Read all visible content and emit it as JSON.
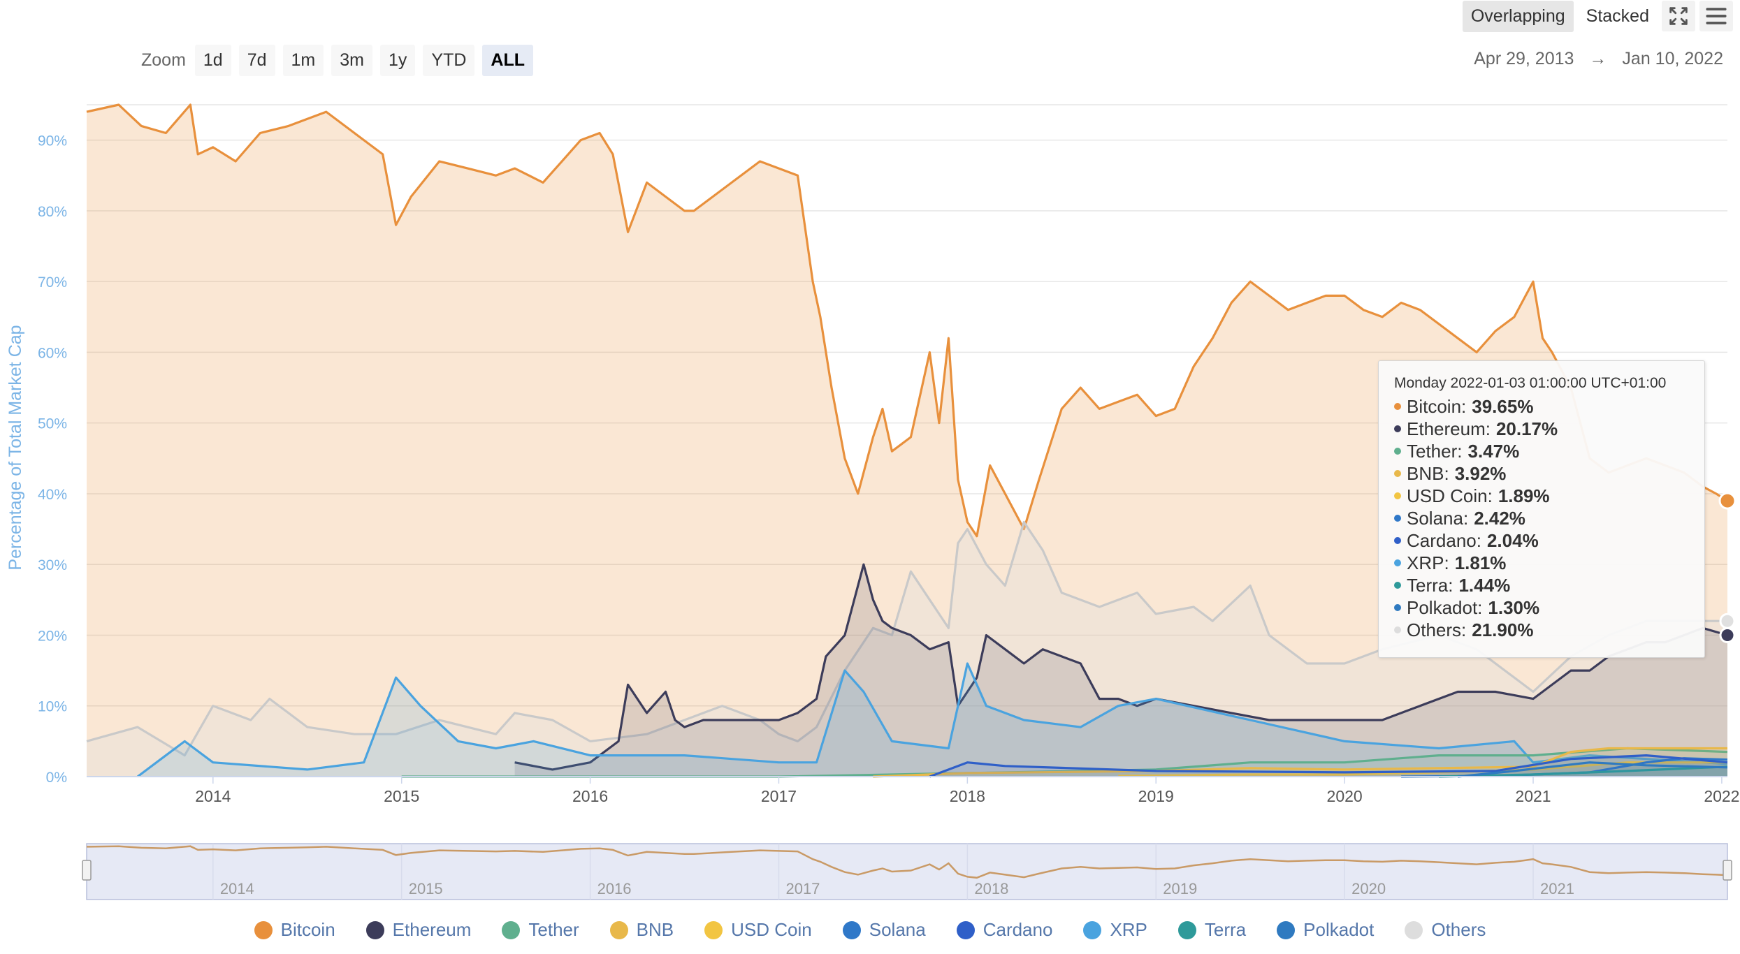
{
  "toolbar": {
    "modes": [
      "Overlapping",
      "Stacked"
    ],
    "active_mode": "Overlapping",
    "zoom_label": "Zoom",
    "zoom_options": [
      "1d",
      "7d",
      "1m",
      "3m",
      "1y",
      "YTD",
      "ALL"
    ],
    "active_zoom": "ALL",
    "range_from": "Apr 29, 2013",
    "range_arrow": "→",
    "range_to": "Jan 10, 2022",
    "fullscreen_icon": "fullscreen-icon",
    "menu_icon": "hamburger-menu-icon"
  },
  "tooltip": {
    "date": "Monday 2022-01-03 01:00:00 UTC+01:00",
    "rows": [
      {
        "name": "Bitcoin",
        "value": "39.65%",
        "color": "#E8903C"
      },
      {
        "name": "Ethereum",
        "value": "20.17%",
        "color": "#3C3C5A"
      },
      {
        "name": "Tether",
        "value": "3.47%",
        "color": "#5FAF8E"
      },
      {
        "name": "BNB",
        "value": "3.92%",
        "color": "#E8B84A"
      },
      {
        "name": "USD Coin",
        "value": "1.89%",
        "color": "#F2C542"
      },
      {
        "name": "Solana",
        "value": "2.42%",
        "color": "#2F78C8"
      },
      {
        "name": "Cardano",
        "value": "2.04%",
        "color": "#2F5FC8"
      },
      {
        "name": "XRP",
        "value": "1.81%",
        "color": "#4AA3DF"
      },
      {
        "name": "Terra",
        "value": "1.44%",
        "color": "#2E9A9A"
      },
      {
        "name": "Polkadot",
        "value": "1.30%",
        "color": "#2F7AC0"
      },
      {
        "name": "Others",
        "value": "21.90%",
        "color": "#DDDDDD"
      }
    ]
  },
  "chart_data": {
    "type": "area",
    "ylabel": "Percentage of Total Market Cap",
    "ylim": [
      0,
      95
    ],
    "y_ticks": [
      "0%",
      "10%",
      "20%",
      "30%",
      "40%",
      "50%",
      "60%",
      "70%",
      "80%",
      "90%"
    ],
    "x_ticks": [
      "2014",
      "2015",
      "2016",
      "2017",
      "2018",
      "2019",
      "2020",
      "2021",
      "2022"
    ],
    "navigator_ticks": [
      "2014",
      "2015",
      "2016",
      "2017",
      "2018",
      "2019",
      "2020",
      "2021"
    ],
    "xlim": [
      2013.33,
      2022.03
    ],
    "grid": true,
    "legend_position": "bottom",
    "series": [
      {
        "name": "Bitcoin",
        "color": "#E8903C",
        "x": [
          2013.33,
          2013.5,
          2013.62,
          2013.75,
          2013.88,
          2013.92,
          2014.0,
          2014.12,
          2014.25,
          2014.4,
          2014.5,
          2014.6,
          2014.75,
          2014.9,
          2014.97,
          2015.05,
          2015.2,
          2015.35,
          2015.5,
          2015.6,
          2015.75,
          2015.85,
          2015.95,
          2016.05,
          2016.12,
          2016.2,
          2016.3,
          2016.4,
          2016.5,
          2016.55,
          2016.65,
          2016.75,
          2016.9,
          2017.0,
          2017.1,
          2017.18,
          2017.22,
          2017.28,
          2017.35,
          2017.42,
          2017.5,
          2017.55,
          2017.6,
          2017.7,
          2017.8,
          2017.85,
          2017.9,
          2017.95,
          2018.0,
          2018.05,
          2018.12,
          2018.2,
          2018.3,
          2018.38,
          2018.5,
          2018.6,
          2018.7,
          2018.8,
          2018.9,
          2019.0,
          2019.1,
          2019.2,
          2019.3,
          2019.4,
          2019.5,
          2019.6,
          2019.7,
          2019.8,
          2019.9,
          2020.0,
          2020.1,
          2020.2,
          2020.3,
          2020.4,
          2020.5,
          2020.6,
          2020.7,
          2020.8,
          2020.9,
          2020.96,
          2021.0,
          2021.05,
          2021.1,
          2021.2,
          2021.3,
          2021.4,
          2021.5,
          2021.6,
          2021.7,
          2021.8,
          2021.9,
          2021.97,
          2022.03
        ],
        "values": [
          94,
          95,
          92,
          91,
          95,
          88,
          89,
          87,
          91,
          92,
          93,
          94,
          91,
          88,
          78,
          82,
          87,
          86,
          85,
          86,
          84,
          87,
          90,
          91,
          88,
          77,
          84,
          82,
          80,
          80,
          82,
          84,
          87,
          86,
          85,
          70,
          65,
          55,
          45,
          40,
          48,
          52,
          46,
          48,
          60,
          50,
          62,
          42,
          36,
          34,
          44,
          40,
          35,
          42,
          52,
          55,
          52,
          53,
          54,
          51,
          52,
          58,
          62,
          67,
          70,
          68,
          66,
          67,
          68,
          68,
          66,
          65,
          67,
          66,
          64,
          62,
          60,
          63,
          65,
          68,
          70,
          62,
          60,
          55,
          45,
          43,
          44,
          45,
          44,
          43,
          41,
          40,
          39
        ]
      },
      {
        "name": "Ethereum",
        "color": "#3C3C5A",
        "x": [
          2015.6,
          2015.8,
          2016.0,
          2016.15,
          2016.2,
          2016.3,
          2016.4,
          2016.45,
          2016.5,
          2016.6,
          2016.8,
          2017.0,
          2017.1,
          2017.2,
          2017.25,
          2017.35,
          2017.45,
          2017.5,
          2017.55,
          2017.6,
          2017.7,
          2017.8,
          2017.9,
          2017.95,
          2018.0,
          2018.05,
          2018.1,
          2018.2,
          2018.3,
          2018.4,
          2018.5,
          2018.6,
          2018.7,
          2018.8,
          2018.9,
          2019.0,
          2019.2,
          2019.4,
          2019.6,
          2019.8,
          2020.0,
          2020.2,
          2020.4,
          2020.6,
          2020.8,
          2021.0,
          2021.1,
          2021.2,
          2021.3,
          2021.4,
          2021.5,
          2021.6,
          2021.7,
          2021.8,
          2021.9,
          2022.03
        ],
        "values": [
          2,
          1,
          2,
          5,
          13,
          9,
          12,
          8,
          7,
          8,
          8,
          8,
          9,
          11,
          17,
          20,
          30,
          25,
          22,
          21,
          20,
          18,
          19,
          10,
          12,
          14,
          20,
          18,
          16,
          18,
          17,
          16,
          11,
          11,
          10,
          11,
          10,
          9,
          8,
          8,
          8,
          8,
          10,
          12,
          12,
          11,
          13,
          15,
          15,
          17,
          18,
          19,
          19,
          20,
          21,
          20
        ]
      },
      {
        "name": "Tether",
        "color": "#5FAF8E",
        "x": [
          2015.0,
          2017.0,
          2018.0,
          2019.0,
          2019.5,
          2020.0,
          2020.5,
          2021.0,
          2021.5,
          2022.03
        ],
        "values": [
          0,
          0,
          0.5,
          1,
          2,
          2,
          3,
          3,
          4,
          3.5
        ]
      },
      {
        "name": "BNB",
        "color": "#E8B84A",
        "x": [
          2017.5,
          2018.0,
          2019.0,
          2019.5,
          2020.0,
          2020.5,
          2021.0,
          2021.2,
          2021.4,
          2021.7,
          2022.03
        ],
        "values": [
          0,
          0.5,
          0.8,
          1.2,
          1.0,
          1.2,
          1.4,
          3.5,
          4.0,
          4.0,
          4.0
        ]
      },
      {
        "name": "USD Coin",
        "color": "#F2C542",
        "x": [
          2018.8,
          2019.5,
          2020.0,
          2020.5,
          2021.0,
          2021.5,
          2022.03
        ],
        "values": [
          0.1,
          0.3,
          0.3,
          0.6,
          1.0,
          2.0,
          2.0
        ]
      },
      {
        "name": "Solana",
        "color": "#2F78C8",
        "x": [
          2020.3,
          2020.8,
          2021.0,
          2021.3,
          2021.6,
          2021.8,
          2022.03
        ],
        "values": [
          0,
          0.1,
          0.3,
          0.6,
          2.0,
          2.6,
          2.4
        ]
      },
      {
        "name": "Cardano",
        "color": "#2F5FC8",
        "x": [
          2017.8,
          2018.0,
          2018.2,
          2019.0,
          2020.0,
          2020.8,
          2021.2,
          2021.6,
          2022.03
        ],
        "values": [
          0,
          2.0,
          1.5,
          0.8,
          0.6,
          0.8,
          2.5,
          3.0,
          2.0
        ]
      },
      {
        "name": "XRP",
        "color": "#4AA3DF",
        "x": [
          2013.6,
          2013.7,
          2013.85,
          2014.0,
          2014.5,
          2014.8,
          2014.97,
          2015.1,
          2015.3,
          2015.5,
          2015.7,
          2016.0,
          2016.5,
          2017.0,
          2017.2,
          2017.35,
          2017.45,
          2017.6,
          2017.9,
          2018.0,
          2018.1,
          2018.3,
          2018.6,
          2018.8,
          2019.0,
          2019.5,
          2020.0,
          2020.5,
          2020.9,
          2021.0,
          2021.3,
          2021.6,
          2022.03
        ],
        "values": [
          0,
          2,
          5,
          2,
          1,
          2,
          14,
          10,
          5,
          4,
          5,
          3,
          3,
          2,
          2,
          15,
          12,
          5,
          4,
          16,
          10,
          8,
          7,
          10,
          11,
          8,
          5,
          4,
          5,
          2,
          3,
          2.5,
          1.8
        ]
      },
      {
        "name": "Terra",
        "color": "#2E9A9A",
        "x": [
          2020.5,
          2021.0,
          2021.5,
          2022.03
        ],
        "values": [
          0,
          0.3,
          0.8,
          1.4
        ]
      },
      {
        "name": "Polkadot",
        "color": "#2F7AC0",
        "x": [
          2020.6,
          2020.9,
          2021.3,
          2021.6,
          2022.03
        ],
        "values": [
          0,
          0.8,
          2.0,
          1.6,
          1.3
        ]
      },
      {
        "name": "Others",
        "color": "#DDDDDD",
        "x": [
          2013.33,
          2013.6,
          2013.85,
          2014.0,
          2014.2,
          2014.3,
          2014.5,
          2014.75,
          2014.97,
          2015.2,
          2015.5,
          2015.6,
          2015.8,
          2016.0,
          2016.3,
          2016.5,
          2016.7,
          2016.9,
          2017.0,
          2017.1,
          2017.2,
          2017.35,
          2017.5,
          2017.6,
          2017.7,
          2017.8,
          2017.9,
          2017.95,
          2018.0,
          2018.1,
          2018.2,
          2018.3,
          2018.4,
          2018.5,
          2018.7,
          2018.9,
          2019.0,
          2019.2,
          2019.3,
          2019.5,
          2019.6,
          2019.8,
          2020.0,
          2020.2,
          2020.5,
          2020.7,
          2020.9,
          2021.0,
          2021.2,
          2021.4,
          2021.6,
          2021.8,
          2022.03
        ],
        "values": [
          5,
          7,
          3,
          10,
          8,
          11,
          7,
          6,
          6,
          8,
          6,
          9,
          8,
          5,
          6,
          8,
          10,
          8,
          6,
          5,
          7,
          15,
          21,
          20,
          29,
          25,
          21,
          33,
          35,
          30,
          27,
          36,
          32,
          26,
          24,
          26,
          23,
          24,
          22,
          27,
          20,
          16,
          16,
          18,
          20,
          18,
          14,
          12,
          17,
          20,
          22,
          22,
          22
        ]
      }
    ]
  },
  "legend": [
    "Bitcoin",
    "Ethereum",
    "Tether",
    "BNB",
    "USD Coin",
    "Solana",
    "Cardano",
    "XRP",
    "Terra",
    "Polkadot",
    "Others"
  ]
}
